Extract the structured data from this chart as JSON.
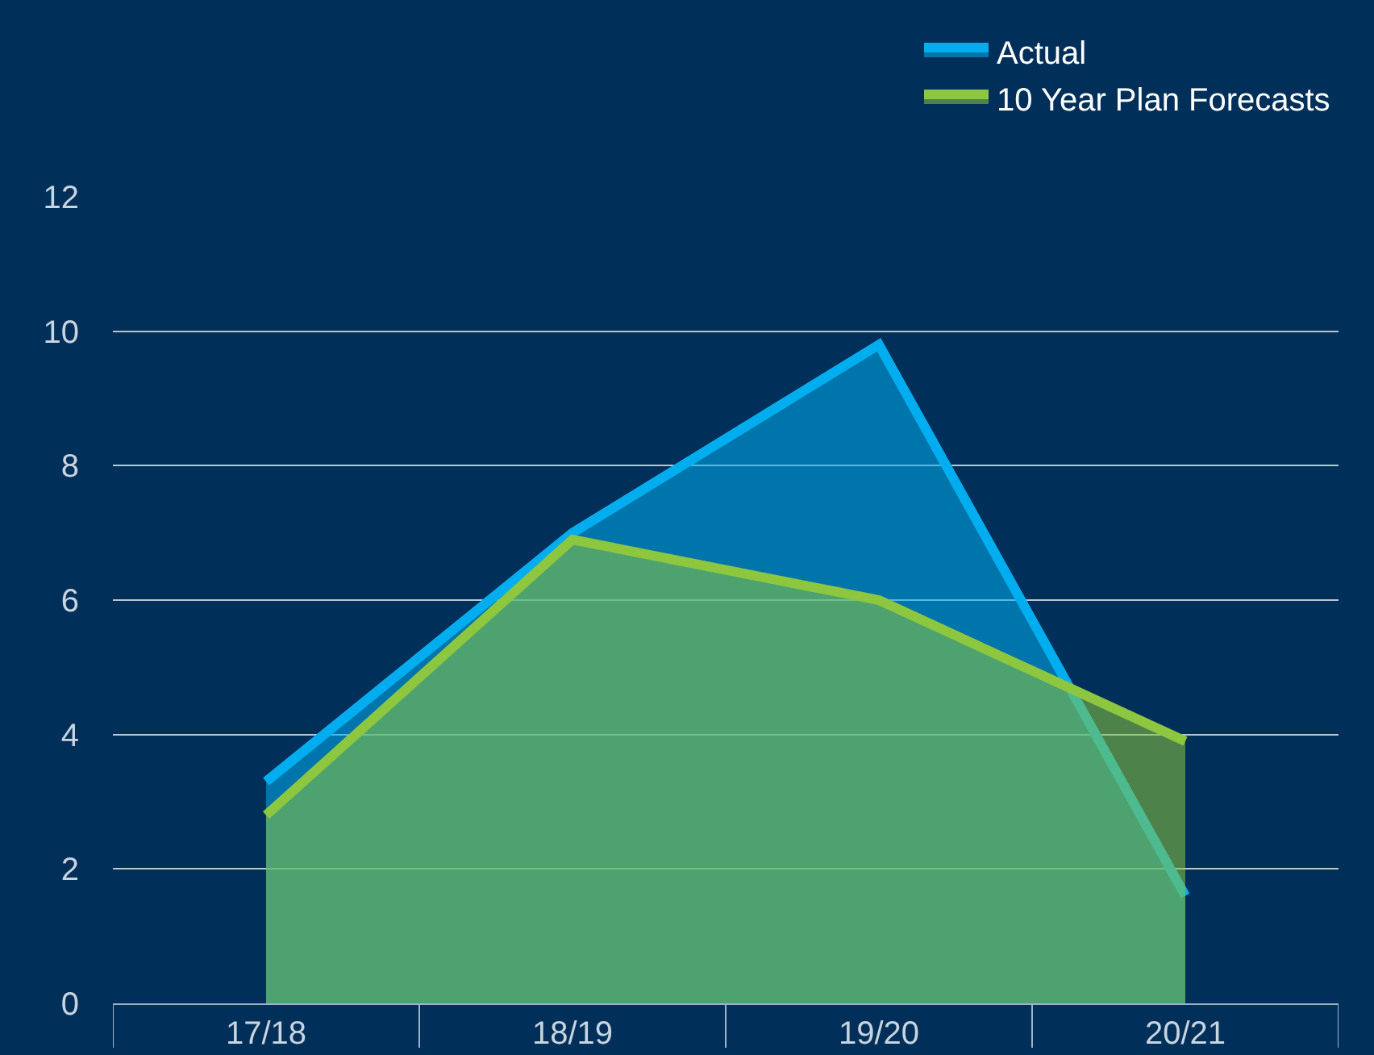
{
  "chart_data": {
    "type": "area",
    "categories": [
      "17/18",
      "18/19",
      "19/20",
      "20/21"
    ],
    "series": [
      {
        "name": "Actual",
        "color": "#00aeef",
        "values": [
          3.3,
          7.0,
          9.8,
          1.6
        ]
      },
      {
        "name": "10 Year Plan Forecasts",
        "color": "#8dc63f",
        "values": [
          2.8,
          6.9,
          6.0,
          3.9
        ]
      }
    ],
    "ylim": [
      0,
      12
    ],
    "yticks": [
      0,
      2,
      4,
      6,
      8,
      10,
      12
    ],
    "grid": "y",
    "legend": "top right"
  }
}
